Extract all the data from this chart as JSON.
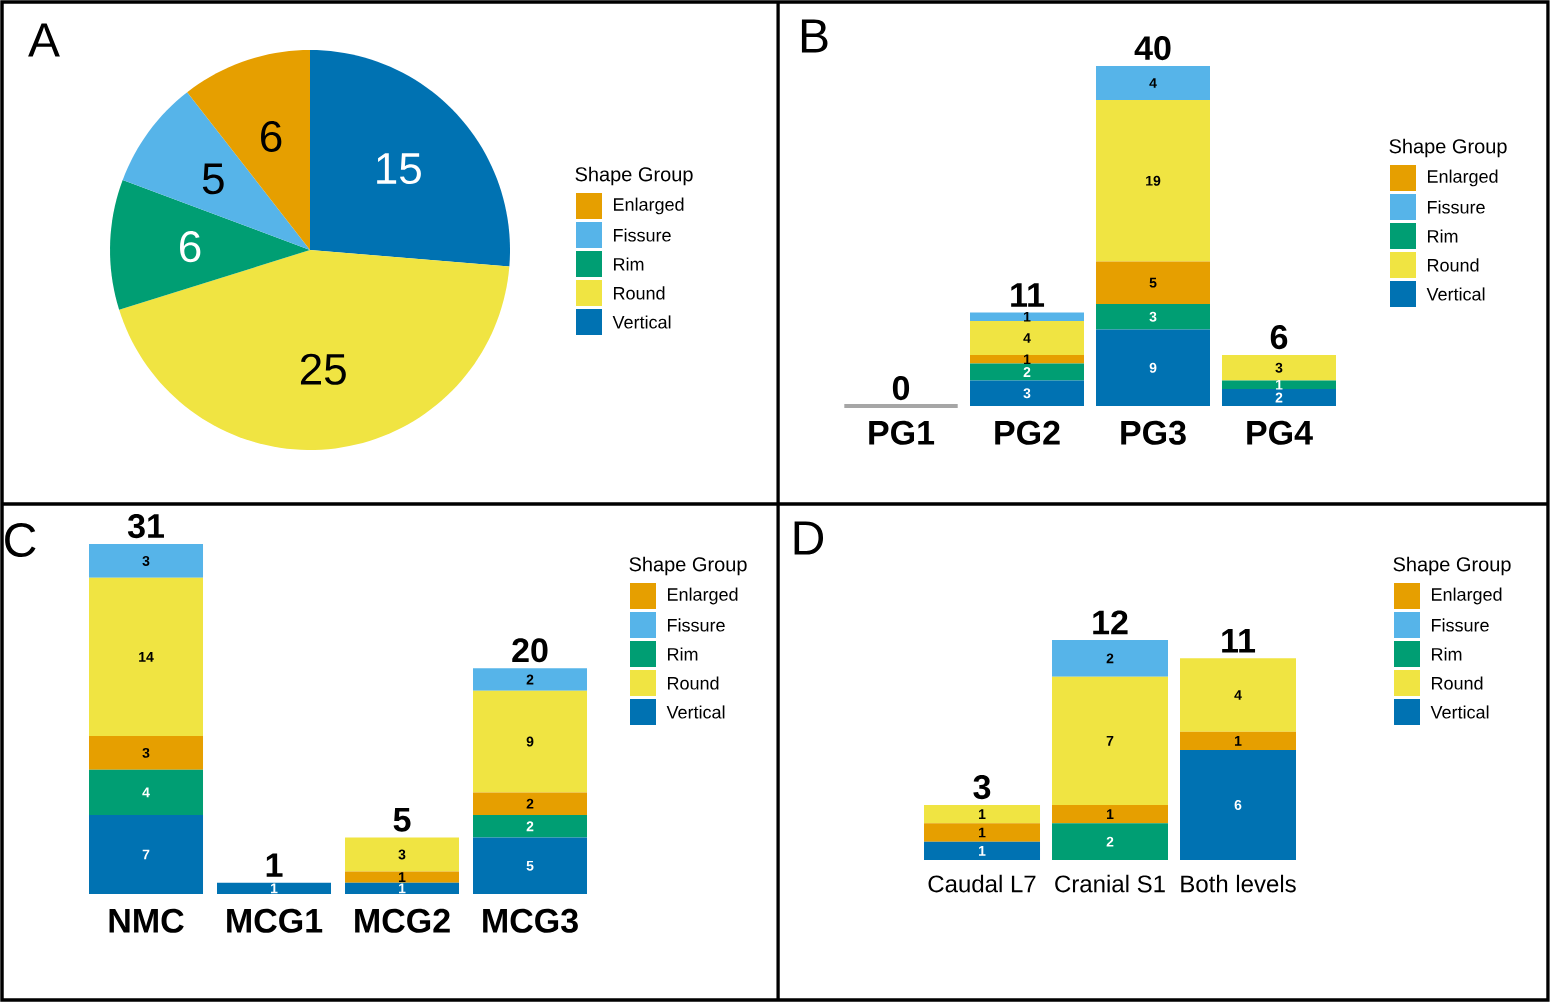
{
  "chart_data": [
    {
      "type": "pie",
      "title": "A",
      "legend_title": "Shape Group",
      "legend": "right",
      "data_labels": true,
      "categories": [
        "Enlarged",
        "Fissure",
        "Rim",
        "Round",
        "Vertical"
      ],
      "values": [
        6,
        5,
        6,
        25,
        15
      ],
      "colors": [
        "#e69f00",
        "#56b4e9",
        "#009e73",
        "#f0e442",
        "#0072b2"
      ]
    },
    {
      "type": "bar",
      "stacked": true,
      "title": "B",
      "legend_title": "Shape Group",
      "legend": "right",
      "tick_labels": "x",
      "categories": [
        "PG1",
        "PG2",
        "PG3",
        "PG4"
      ],
      "series": [
        {
          "name": "Vertical",
          "color": "#0072b2",
          "values": [
            0,
            3,
            9,
            2
          ],
          "value_labels": [
            null,
            "3",
            "9",
            "2"
          ]
        },
        {
          "name": "Rim",
          "color": "#009e73",
          "values": [
            0,
            2,
            3,
            1
          ],
          "value_labels": [
            null,
            "2",
            "3",
            "1"
          ]
        },
        {
          "name": "Enlarged",
          "color": "#e69f00",
          "values": [
            0,
            1,
            5,
            0
          ],
          "value_labels": [
            null,
            "1",
            "5",
            null
          ]
        },
        {
          "name": "Round",
          "color": "#f0e442",
          "values": [
            0,
            4,
            19,
            3
          ],
          "value_labels": [
            null,
            "4",
            "19",
            "3"
          ]
        },
        {
          "name": "Fissure",
          "color": "#56b4e9",
          "values": [
            0,
            1,
            4,
            0
          ],
          "value_labels": [
            null,
            "1",
            "4",
            null
          ]
        }
      ],
      "totals": [
        "0",
        "11",
        "40",
        "6"
      ]
    },
    {
      "type": "bar",
      "stacked": true,
      "title": "C",
      "legend_title": "Shape Group",
      "legend": "right",
      "tick_labels": "x",
      "categories": [
        "NMC",
        "MCG1",
        "MCG2",
        "MCG3"
      ],
      "series": [
        {
          "name": "Vertical",
          "color": "#0072b2",
          "values": [
            7,
            1,
            1,
            5
          ],
          "value_labels": [
            "7",
            "1",
            "1",
            "5"
          ]
        },
        {
          "name": "Rim",
          "color": "#009e73",
          "values": [
            4,
            0,
            0,
            2
          ],
          "value_labels": [
            "4",
            null,
            null,
            "2"
          ]
        },
        {
          "name": "Enlarged",
          "color": "#e69f00",
          "values": [
            3,
            0,
            1,
            2
          ],
          "value_labels": [
            "3",
            null,
            "1",
            "2"
          ]
        },
        {
          "name": "Round",
          "color": "#f0e442",
          "values": [
            14,
            0,
            3,
            9
          ],
          "value_labels": [
            "14",
            null,
            "3",
            "9"
          ]
        },
        {
          "name": "Fissure",
          "color": "#56b4e9",
          "values": [
            3,
            0,
            0,
            2
          ],
          "value_labels": [
            "3",
            null,
            null,
            "2"
          ]
        }
      ],
      "totals": [
        "31",
        "1",
        "5",
        "20"
      ]
    },
    {
      "type": "bar",
      "stacked": true,
      "title": "D",
      "legend_title": "Shape Group",
      "legend": "right",
      "tick_labels": "x",
      "categories": [
        "Caudal L7",
        "Cranial S1",
        "Both levels"
      ],
      "series": [
        {
          "name": "Vertical",
          "color": "#0072b2",
          "values": [
            1,
            0,
            6
          ],
          "value_labels": [
            "1",
            null,
            "6"
          ]
        },
        {
          "name": "Rim",
          "color": "#009e73",
          "values": [
            0,
            2,
            0
          ],
          "value_labels": [
            null,
            "2",
            null
          ]
        },
        {
          "name": "Enlarged",
          "color": "#e69f00",
          "values": [
            1,
            1,
            1
          ],
          "value_labels": [
            "1",
            "1",
            "1"
          ]
        },
        {
          "name": "Round",
          "color": "#f0e442",
          "values": [
            1,
            7,
            4
          ],
          "value_labels": [
            "1",
            "7",
            "4"
          ]
        },
        {
          "name": "Fissure",
          "color": "#56b4e9",
          "values": [
            0,
            2,
            0
          ],
          "value_labels": [
            null,
            "2",
            null
          ]
        }
      ],
      "totals": [
        "3",
        "12",
        "11"
      ]
    }
  ]
}
